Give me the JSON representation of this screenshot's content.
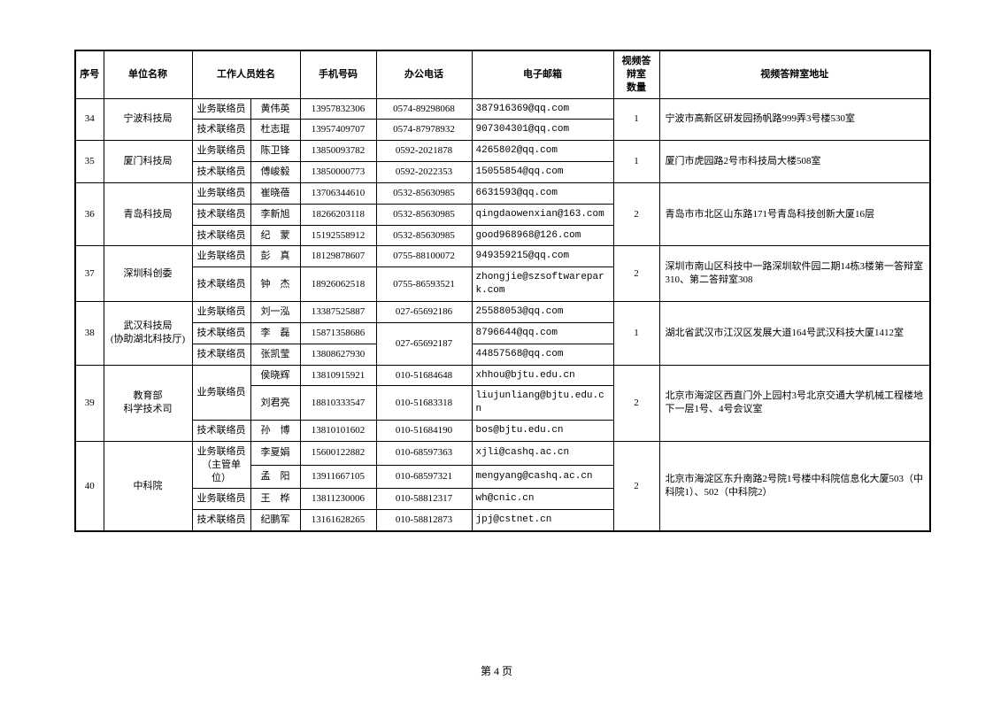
{
  "headers": {
    "seq": "序号",
    "unit": "单位名称",
    "staff": "工作人员姓名",
    "phone": "手机号码",
    "tel": "办公电话",
    "email": "电子邮箱",
    "rooms": "视频答辩室\n数量",
    "addr": "视频答辩室地址"
  },
  "footer": "第 4 页",
  "rows": [
    {
      "seq": "34",
      "unit": "宁波科技局",
      "rooms": "1",
      "addr": "宁波市高新区研发园扬帆路999弄3号楼530室",
      "staff": [
        {
          "role": "业务联络员",
          "name": "黄伟英",
          "phone": "13957832306",
          "tel": "0574-89298068",
          "email": "387916369@qq.com"
        },
        {
          "role": "技术联络员",
          "name": "杜志琨",
          "phone": "13957409707",
          "tel": "0574-87978932",
          "email": "907304301@qq.com"
        }
      ]
    },
    {
      "seq": "35",
      "unit": "厦门科技局",
      "rooms": "1",
      "addr": "厦门市虎园路2号市科技局大楼508室",
      "staff": [
        {
          "role": "业务联络员",
          "name": "陈卫锋",
          "phone": "13850093782",
          "tel": "0592-2021878",
          "email": "4265802@qq.com"
        },
        {
          "role": "技术联络员",
          "name": "傅峻毅",
          "phone": "13850000773",
          "tel": "0592-2022353",
          "email": "15055854@qq.com"
        }
      ]
    },
    {
      "seq": "36",
      "unit": "青岛科技局",
      "rooms": "2",
      "addr": "青岛市市北区山东路171号青岛科技创新大厦16层",
      "staff": [
        {
          "role": "业务联络员",
          "name": "崔晓蓓",
          "phone": "13706344610",
          "tel": "0532-85630985",
          "email": "6631593@qq.com"
        },
        {
          "role": "技术联络员",
          "name": "李新旭",
          "phone": "18266203118",
          "tel": "0532-85630985",
          "email": "qingdaowenxian@163.com"
        },
        {
          "role": "技术联络员",
          "name": "纪　蒙",
          "phone": "15192558912",
          "tel": "0532-85630985",
          "email": "good968968@126.com"
        }
      ]
    },
    {
      "seq": "37",
      "unit": "深圳科创委",
      "rooms": "2",
      "addr": "深圳市南山区科技中一路深圳软件园二期14栋3楼第一答辩室310、第二答辩室308",
      "staff": [
        {
          "role": "业务联络员",
          "name": "彭　真",
          "phone": "18129878607",
          "tel": "0755-88100072",
          "email": "949359215@qq.com"
        },
        {
          "role": "技术联络员",
          "name": "钟　杰",
          "phone": "18926062518",
          "tel": "0755-86593521",
          "email": "zhongjie@szsoftwarepark.com"
        }
      ]
    },
    {
      "seq": "38",
      "unit": "武汉科技局\n(协助湖北科技厅)",
      "rooms": "1",
      "addr": "湖北省武汉市江汉区发展大道164号武汉科技大厦1412室",
      "staff": [
        {
          "role": "业务联络员",
          "name": "刘一泓",
          "phone": "13387525887",
          "tel": "027-65692186",
          "email": "25588053@qq.com"
        },
        {
          "role": "技术联络员",
          "name": "李　磊",
          "phone": "15871358686",
          "tel": "027-65692187",
          "tel_rowspan": 2,
          "email": "8796644@qq.com"
        },
        {
          "role": "技术联络员",
          "name": "张凯莹",
          "phone": "13808627930",
          "email": "44857568@qq.com"
        }
      ]
    },
    {
      "seq": "39",
      "unit": "教育部\n科学技术司",
      "rooms": "2",
      "addr": "北京市海淀区西直门外上园村3号北京交通大学机械工程楼地下一层1号、4号会议室",
      "staff": [
        {
          "role": "业务联络员",
          "role_rowspan": 2,
          "name": "侯晓辉",
          "phone": "13810915921",
          "tel": "010-51684648",
          "email": "xhhou@bjtu.edu.cn"
        },
        {
          "name": "刘君亮",
          "phone": "18810333547",
          "tel": "010-51683318",
          "email": "liujunliang@bjtu.edu.cn"
        },
        {
          "role": "技术联络员",
          "name": "孙　博",
          "phone": "13810101602",
          "tel": "010-51684190",
          "email": "bos@bjtu.edu.cn"
        }
      ]
    },
    {
      "seq": "40",
      "unit": "中科院",
      "rooms": "2",
      "addr": "北京市海淀区东升南路2号院1号楼中科院信息化大厦503（中科院1）、502（中科院2）",
      "staff": [
        {
          "role": "业务联络员\n（主管单位）",
          "role_rowspan": 2,
          "name": "李夏娟",
          "phone": "15600122882",
          "tel": "010-68597363",
          "email": "xjli@cashq.ac.cn"
        },
        {
          "name": "孟　阳",
          "phone": "13911667105",
          "tel": "010-68597321",
          "email": "mengyang@cashq.ac.cn"
        },
        {
          "role": "业务联络员",
          "name": "王　桦",
          "phone": "13811230006",
          "tel": "010-58812317",
          "email": "wh@cnic.cn"
        },
        {
          "role": "技术联络员",
          "name": "纪鹏军",
          "phone": "13161628265",
          "tel": "010-58812873",
          "email": "jpj@cstnet.cn"
        }
      ]
    }
  ]
}
